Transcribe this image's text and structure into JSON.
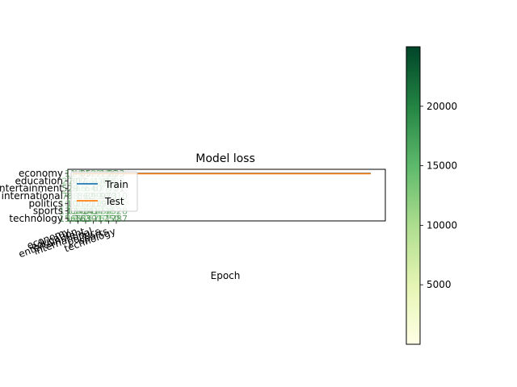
{
  "chart_data": {
    "type": "line",
    "title": "Model loss",
    "xlabel": "Epoch",
    "ylabel": "",
    "categories": [
      "economy",
      "education",
      "entertainment",
      "international",
      "politics",
      "sports",
      "technology"
    ],
    "x_tick_labels": [
      "economy",
      "education",
      "entertainment",
      "international",
      "politics",
      "sports",
      "technology"
    ],
    "y_tick_labels": [
      "economy",
      "education",
      "entertainment",
      "international",
      "politics",
      "sports",
      "technology"
    ],
    "series": [
      {
        "name": "Train",
        "color": "#1f77b4",
        "x": [
          0,
          1
        ],
        "y": [
          0,
          0
        ]
      },
      {
        "name": "Test",
        "color": "#ff7f0e",
        "x": [
          0,
          1
        ],
        "y": [
          0,
          0
        ]
      }
    ],
    "legend": {
      "placement": "upper-left",
      "entries": [
        "Train",
        "Test"
      ]
    },
    "colormap": "Greens",
    "colorbar_ticks": [
      5000,
      10000,
      15000,
      20000
    ],
    "colorbar_range": [
      0,
      25000
    ],
    "grid": false
  }
}
